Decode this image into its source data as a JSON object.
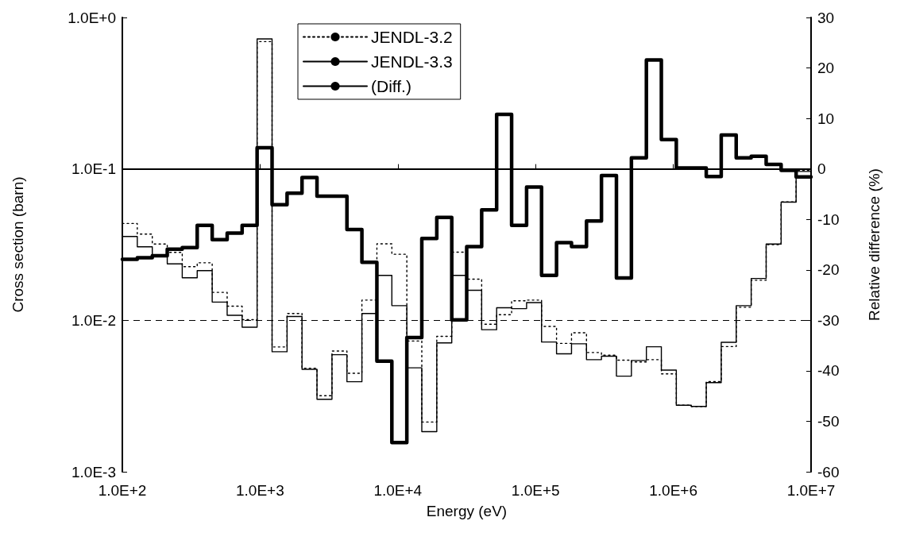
{
  "chart_data": {
    "type": "step",
    "xlabel": "Energy (eV)",
    "ylabel": "Cross section (barn)",
    "y2label": "Relative difference (%)",
    "x": [
      100,
      128.4,
      165.0,
      211.9,
      272.2,
      349.6,
      449.1,
      576.8,
      740.8,
      951.5,
      1222,
      1570,
      2016,
      2589,
      3326,
      4272,
      5486,
      7047,
      9051,
      11626,
      14932,
      19179,
      24634,
      31623,
      40617,
      52170,
      67006,
      86066,
      110545,
      141985,
      182370,
      234240,
      300863,
      386436,
      496347,
      637462,
      818797,
      1051300,
      1350400,
      1734500,
      2227800,
      2861500,
      3675500,
      4720800,
      6063300,
      7788000,
      10000000
    ],
    "series": [
      {
        "name": "JENDL-3.2",
        "color": "#000000",
        "line_style": "dotted",
        "values": [
          0.0436,
          0.0371,
          0.0319,
          0.0281,
          0.0226,
          0.024,
          0.0153,
          0.0124,
          0.0101,
          0.693,
          0.00667,
          0.0111,
          0.00483,
          0.00318,
          0.00627,
          0.00447,
          0.0136,
          0.032,
          0.0273,
          0.0073,
          0.00213,
          0.00784,
          0.0282,
          0.0187,
          0.00943,
          0.0109,
          0.01346,
          0.0136,
          0.00911,
          0.00704,
          0.00827,
          0.00613,
          0.00588,
          0.00546,
          0.00531,
          0.0055,
          0.00443,
          0.00275,
          0.0027,
          0.00394,
          0.00671,
          0.0122,
          0.0184,
          0.0316,
          0.0605,
          0.0978,
          0.0978
        ]
      },
      {
        "name": "JENDL-3.3",
        "color": "#000000",
        "line_style": "solid",
        "values": [
          0.0358,
          0.0306,
          0.0264,
          0.0236,
          0.0191,
          0.0213,
          0.0132,
          0.0108,
          0.009,
          0.722,
          0.0062,
          0.0106,
          0.00475,
          0.00301,
          0.00593,
          0.00393,
          0.0111,
          0.0198,
          0.0125,
          0.00486,
          0.00184,
          0.00709,
          0.0198,
          0.0158,
          0.00867,
          0.0121,
          0.01195,
          0.0131,
          0.00719,
          0.00601,
          0.007,
          0.0055,
          0.0058,
          0.00428,
          0.00543,
          0.00669,
          0.00469,
          0.00275,
          0.0027,
          0.00388,
          0.00716,
          0.0125,
          0.0189,
          0.0319,
          0.0603,
          0.0962,
          0.0962
        ]
      },
      {
        "name": "(Diff.)",
        "color": "#000000",
        "line_style": "solid",
        "axis": "y2",
        "values": [
          -17.9,
          -17.6,
          -17.2,
          -15.9,
          -15.6,
          -11.2,
          -14,
          -12.7,
          -11.2,
          4.2,
          -7.1,
          -4.8,
          -1.7,
          -5.4,
          -5.4,
          -12,
          -18.5,
          -38.1,
          -54.2,
          -33.4,
          -13.8,
          -9.6,
          -29.9,
          -15.4,
          -8.1,
          10.8,
          -11.2,
          -3.6,
          -21.1,
          -14.6,
          -15.4,
          -10.3,
          -1.3,
          -21.6,
          2.2,
          21.6,
          5.8,
          0.2,
          0.2,
          -1.5,
          6.7,
          2.2,
          2.5,
          0.9,
          -0.3,
          -1.6,
          -1.6
        ]
      }
    ],
    "log": "xy",
    "xlim": [
      100,
      10000000
    ],
    "xticks": [
      {
        "value": 100,
        "label": "1.0E+2"
      },
      {
        "value": 1000,
        "label": "1.0E+3"
      },
      {
        "value": 10000,
        "label": "1.0E+4"
      },
      {
        "value": 100000,
        "label": "1.0E+5"
      },
      {
        "value": 1000000,
        "label": "1.0E+6"
      },
      {
        "value": 10000000,
        "label": "1.0E+7"
      }
    ],
    "ylim": [
      0.001,
      1
    ],
    "yticks": [
      {
        "value": 0.001,
        "label": "1.0E-3"
      },
      {
        "value": 0.01,
        "label": "1.0E-2"
      },
      {
        "value": 0.1,
        "label": "1.0E-1"
      },
      {
        "value": 1,
        "label": "1.0E+0"
      }
    ],
    "y2lim": [
      -60,
      30
    ],
    "y2ticks": [
      -60,
      -50,
      -40,
      -30,
      -20,
      -10,
      0,
      10,
      20,
      30
    ],
    "ref_lines": [
      {
        "axis": "y",
        "value": 0.1,
        "line_style": "solid"
      },
      {
        "axis": "y",
        "value": 0.01,
        "line_style": "dashed"
      }
    ],
    "grid": false,
    "legend": "top left",
    "marker": "none"
  }
}
